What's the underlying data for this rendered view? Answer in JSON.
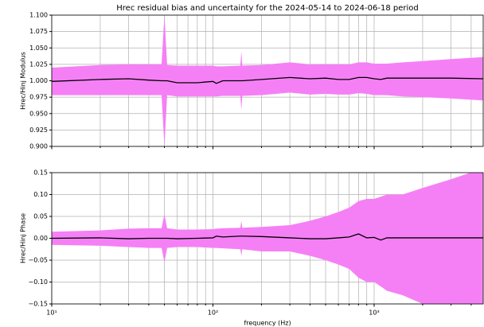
{
  "chart_data": [
    {
      "type": "line",
      "title": "Hrec residual bias and uncertainty for the 2024-05-14 to 2024-06-18 period",
      "ylabel": "Hrec/Hinj Modulus",
      "xscale": "log",
      "grid": true,
      "xlim": [
        10,
        4750
      ],
      "xticks": [
        10,
        100,
        1000
      ],
      "xminor_ticks": [
        20,
        30,
        40,
        50,
        60,
        70,
        80,
        90,
        200,
        300,
        400,
        500,
        600,
        700,
        800,
        900,
        2000,
        3000,
        4000
      ],
      "ylim": [
        0.9,
        1.1
      ],
      "yticks": [
        {
          "value": 0.9,
          "label": "0.900"
        },
        {
          "value": 0.925,
          "label": "0.925"
        },
        {
          "value": 0.95,
          "label": "0.950"
        },
        {
          "value": 0.975,
          "label": "0.975"
        },
        {
          "value": 1.0,
          "label": "1.000"
        },
        {
          "value": 1.025,
          "label": "1.025"
        },
        {
          "value": 1.05,
          "label": "1.050"
        },
        {
          "value": 1.075,
          "label": "1.075"
        },
        {
          "value": 1.1,
          "label": "1.100"
        }
      ],
      "color": "#000000",
      "band_color": "#f580f5",
      "x": [
        10,
        20,
        30,
        40,
        48,
        50,
        52,
        60,
        80,
        100,
        105,
        115,
        148,
        150,
        152,
        200,
        300,
        400,
        500,
        600,
        700,
        800,
        900,
        1000,
        1100,
        1200,
        1500,
        2000,
        3000,
        4750
      ],
      "values": [
        0.999,
        1.002,
        1.003,
        1.001,
        1.0,
        1.0,
        1.0,
        0.997,
        0.997,
        0.999,
        0.996,
        1.0,
        1.0,
        1.0,
        1.0,
        1.002,
        1.005,
        1.003,
        1.004,
        1.002,
        1.002,
        1.005,
        1.005,
        1.003,
        1.002,
        1.004,
        1.004,
        1.004,
        1.004,
        1.003
      ],
      "upper": [
        1.02,
        1.024,
        1.025,
        1.025,
        1.025,
        1.1,
        1.024,
        1.023,
        1.023,
        1.023,
        1.022,
        1.022,
        1.023,
        1.045,
        1.023,
        1.024,
        1.028,
        1.025,
        1.025,
        1.025,
        1.025,
        1.028,
        1.028,
        1.026,
        1.026,
        1.026,
        1.028,
        1.03,
        1.033,
        1.036
      ],
      "lower": [
        0.978,
        0.978,
        0.978,
        0.978,
        0.978,
        0.9,
        0.978,
        0.976,
        0.976,
        0.976,
        0.976,
        0.977,
        0.977,
        0.955,
        0.977,
        0.978,
        0.982,
        0.979,
        0.98,
        0.979,
        0.979,
        0.981,
        0.98,
        0.978,
        0.978,
        0.978,
        0.976,
        0.975,
        0.973,
        0.97
      ]
    },
    {
      "type": "line",
      "ylabel": "Hrec/Hinj Phase",
      "xlabel": "frequency (Hz)",
      "xscale": "log",
      "grid": true,
      "xlim": [
        10,
        4750
      ],
      "xticks": [
        {
          "value": 10,
          "label": "10¹"
        },
        {
          "value": 100,
          "label": "10²"
        },
        {
          "value": 1000,
          "label": "10³"
        }
      ],
      "xminor_ticks": [
        20,
        30,
        40,
        50,
        60,
        70,
        80,
        90,
        200,
        300,
        400,
        500,
        600,
        700,
        800,
        900,
        2000,
        3000,
        4000
      ],
      "ylim": [
        -0.15,
        0.15
      ],
      "yticks": [
        {
          "value": -0.15,
          "label": "−0.15"
        },
        {
          "value": -0.1,
          "label": "−0.10"
        },
        {
          "value": -0.05,
          "label": "−0.05"
        },
        {
          "value": 0,
          "label": "0.00"
        },
        {
          "value": 0.05,
          "label": "0.05"
        },
        {
          "value": 0.1,
          "label": "0.10"
        },
        {
          "value": 0.15,
          "label": "0.15"
        }
      ],
      "color": "#000000",
      "band_color": "#f580f5",
      "x": [
        10,
        20,
        30,
        40,
        48,
        50,
        52,
        60,
        80,
        100,
        105,
        115,
        148,
        150,
        152,
        200,
        300,
        400,
        500,
        600,
        700,
        800,
        900,
        1000,
        1100,
        1200,
        1500,
        2000,
        3000,
        4750
      ],
      "values": [
        0,
        0.001,
        -0.001,
        0,
        0,
        0,
        0,
        -0.001,
        0,
        0.001,
        0.005,
        0.003,
        0.005,
        0.005,
        0.005,
        0.004,
        0.001,
        -0.001,
        -0.001,
        0.001,
        0.003,
        0.01,
        0.001,
        0.002,
        -0.004,
        0.001,
        0.001,
        0.001,
        0.001,
        0.001
      ],
      "upper": [
        0.015,
        0.018,
        0.022,
        0.023,
        0.023,
        0.055,
        0.023,
        0.02,
        0.02,
        0.021,
        0.022,
        0.023,
        0.024,
        0.04,
        0.024,
        0.026,
        0.03,
        0.04,
        0.05,
        0.06,
        0.07,
        0.085,
        0.09,
        0.09,
        0.095,
        0.1,
        0.1,
        0.115,
        0.135,
        0.16
      ],
      "lower": [
        -0.015,
        -0.017,
        -0.02,
        -0.022,
        -0.022,
        -0.055,
        -0.022,
        -0.02,
        -0.02,
        -0.022,
        -0.022,
        -0.023,
        -0.025,
        -0.04,
        -0.025,
        -0.03,
        -0.03,
        -0.04,
        -0.05,
        -0.06,
        -0.07,
        -0.09,
        -0.1,
        -0.1,
        -0.11,
        -0.12,
        -0.13,
        -0.15,
        -0.16,
        -0.17
      ]
    }
  ]
}
